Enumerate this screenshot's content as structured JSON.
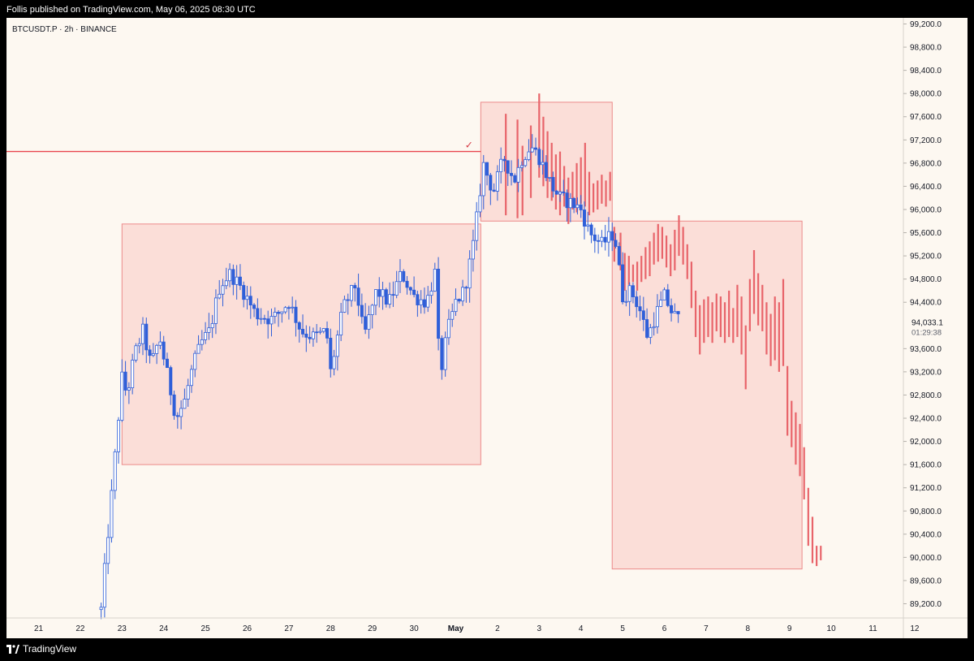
{
  "header": {
    "attribution": "Follis published on TradingView.com, May 06, 2025 08:30 UTC"
  },
  "symbol": {
    "title": "BTCUSDT.P · 2h · BINANCE"
  },
  "footer": {
    "brand": "TradingView"
  },
  "chart_data": {
    "type": "candlestick",
    "y_axis": {
      "ticks": [
        99200,
        98800,
        98400,
        98000,
        97600,
        97200,
        96800,
        96400,
        96000,
        95600,
        95200,
        94800,
        94400,
        93600,
        93200,
        92800,
        92400,
        92000,
        91600,
        91200,
        90800,
        90400,
        90000,
        89600,
        89200
      ],
      "tick_labels": [
        "99,200.0",
        "98,800.0",
        "98,400.0",
        "98,000.0",
        "97,600.0",
        "97,200.0",
        "96,800.0",
        "96,400.0",
        "96,000.0",
        "95,600.0",
        "95,200.0",
        "94,800.0",
        "94,400.0",
        "93,600.0",
        "93,200.0",
        "92,800.0",
        "92,400.0",
        "92,000.0",
        "91,600.0",
        "91,200.0",
        "90,800.0",
        "90,400.0",
        "90,000.0",
        "89,600.0",
        "89,200.0"
      ],
      "range": [
        88900,
        99200
      ]
    },
    "x_axis": {
      "start": "2025-04-21",
      "labels": [
        {
          "label": "21",
          "day": 0,
          "bold": false
        },
        {
          "label": "22",
          "day": 1,
          "bold": false
        },
        {
          "label": "23",
          "day": 2,
          "bold": false
        },
        {
          "label": "24",
          "day": 3,
          "bold": false
        },
        {
          "label": "25",
          "day": 4,
          "bold": false
        },
        {
          "label": "26",
          "day": 5,
          "bold": false
        },
        {
          "label": "27",
          "day": 6,
          "bold": false
        },
        {
          "label": "28",
          "day": 7,
          "bold": false
        },
        {
          "label": "29",
          "day": 8,
          "bold": false
        },
        {
          "label": "30",
          "day": 9,
          "bold": false
        },
        {
          "label": "May",
          "day": 10,
          "bold": true
        },
        {
          "label": "2",
          "day": 11,
          "bold": false
        },
        {
          "label": "3",
          "day": 12,
          "bold": false
        },
        {
          "label": "4",
          "day": 13,
          "bold": false
        },
        {
          "label": "5",
          "day": 14,
          "bold": false
        },
        {
          "label": "6",
          "day": 15,
          "bold": false
        },
        {
          "label": "7",
          "day": 16,
          "bold": false
        },
        {
          "label": "8",
          "day": 17,
          "bold": false
        },
        {
          "label": "9",
          "day": 18,
          "bold": false
        },
        {
          "label": "10",
          "day": 19,
          "bold": false
        },
        {
          "label": "11",
          "day": 20,
          "bold": false
        },
        {
          "label": "12",
          "day": 21,
          "bold": false
        }
      ]
    },
    "current_price": {
      "value": 94033.1,
      "label": "94,033.1",
      "countdown": "01:29:38"
    },
    "horizontal_line": {
      "price": 97000,
      "label": "✓"
    },
    "zones": [
      {
        "name": "range",
        "day_start": 2.0,
        "day_end": 10.6,
        "price_top": 95750,
        "price_bottom": 91600
      },
      {
        "name": "top",
        "day_start": 10.6,
        "day_end": 13.75,
        "price_top": 97850,
        "price_bottom": 95800
      },
      {
        "name": "target",
        "day_start": 13.75,
        "day_end": 18.3,
        "price_top": 95800,
        "price_bottom": 89800
      }
    ],
    "series": [
      {
        "name": "price",
        "color": "#2f5fd9",
        "anchors": [
          {
            "day": 1.5,
            "price": 89100
          },
          {
            "day": 1.65,
            "price": 90300
          },
          {
            "day": 1.78,
            "price": 91300
          },
          {
            "day": 1.9,
            "price": 92300
          },
          {
            "day": 2.0,
            "price": 93100
          },
          {
            "day": 2.12,
            "price": 92800
          },
          {
            "day": 2.3,
            "price": 93500
          },
          {
            "day": 2.5,
            "price": 93900
          },
          {
            "day": 2.7,
            "price": 93300
          },
          {
            "day": 2.9,
            "price": 93800
          },
          {
            "day": 3.1,
            "price": 93100
          },
          {
            "day": 3.3,
            "price": 92400
          },
          {
            "day": 3.5,
            "price": 92700
          },
          {
            "day": 3.7,
            "price": 93300
          },
          {
            "day": 3.9,
            "price": 93700
          },
          {
            "day": 4.1,
            "price": 93900
          },
          {
            "day": 4.35,
            "price": 94700
          },
          {
            "day": 4.6,
            "price": 94900
          },
          {
            "day": 4.9,
            "price": 94600
          },
          {
            "day": 5.2,
            "price": 94200
          },
          {
            "day": 5.6,
            "price": 94100
          },
          {
            "day": 6.0,
            "price": 94400
          },
          {
            "day": 6.3,
            "price": 93900
          },
          {
            "day": 6.6,
            "price": 93800
          },
          {
            "day": 6.9,
            "price": 93900
          },
          {
            "day": 7.0,
            "price": 93200
          },
          {
            "day": 7.3,
            "price": 94300
          },
          {
            "day": 7.6,
            "price": 94700
          },
          {
            "day": 7.8,
            "price": 93800
          },
          {
            "day": 8.1,
            "price": 94600
          },
          {
            "day": 8.4,
            "price": 94400
          },
          {
            "day": 8.7,
            "price": 94900
          },
          {
            "day": 9.0,
            "price": 94500
          },
          {
            "day": 9.3,
            "price": 94400
          },
          {
            "day": 9.5,
            "price": 94900
          },
          {
            "day": 9.62,
            "price": 93100
          },
          {
            "day": 9.8,
            "price": 93900
          },
          {
            "day": 10.0,
            "price": 94400
          },
          {
            "day": 10.2,
            "price": 94600
          },
          {
            "day": 10.4,
            "price": 95300
          },
          {
            "day": 10.55,
            "price": 96100
          },
          {
            "day": 10.65,
            "price": 96800
          },
          {
            "day": 10.9,
            "price": 96300
          },
          {
            "day": 11.15,
            "price": 96900
          },
          {
            "day": 11.4,
            "price": 96500
          },
          {
            "day": 11.6,
            "price": 96900
          },
          {
            "day": 11.8,
            "price": 97100
          },
          {
            "day": 12.0,
            "price": 96900
          },
          {
            "day": 12.3,
            "price": 96400
          },
          {
            "day": 12.5,
            "price": 96200
          },
          {
            "day": 12.8,
            "price": 96100
          },
          {
            "day": 13.0,
            "price": 96000
          },
          {
            "day": 13.2,
            "price": 95600
          },
          {
            "day": 13.5,
            "price": 95400
          },
          {
            "day": 13.8,
            "price": 95600
          },
          {
            "day": 14.0,
            "price": 94500
          },
          {
            "day": 14.2,
            "price": 94600
          },
          {
            "day": 14.4,
            "price": 94300
          },
          {
            "day": 14.6,
            "price": 93800
          },
          {
            "day": 14.8,
            "price": 94200
          },
          {
            "day": 15.0,
            "price": 94500
          },
          {
            "day": 15.2,
            "price": 94200
          },
          {
            "day": 15.35,
            "price": 94100
          }
        ]
      },
      {
        "name": "projection",
        "color": "#e8646a",
        "bars": [
          {
            "day": 11.2,
            "high": 97650,
            "low": 95900
          },
          {
            "day": 11.48,
            "high": 97550,
            "low": 95850
          },
          {
            "day": 11.6,
            "high": 97100,
            "low": 95900
          },
          {
            "day": 11.8,
            "high": 97450,
            "low": 96200
          },
          {
            "day": 12.0,
            "high": 98000,
            "low": 96550
          },
          {
            "day": 12.1,
            "high": 97600,
            "low": 96400
          },
          {
            "day": 12.2,
            "high": 97350,
            "low": 96200
          },
          {
            "day": 12.3,
            "high": 97150,
            "low": 96150
          },
          {
            "day": 12.4,
            "high": 96950,
            "low": 96000
          },
          {
            "day": 12.5,
            "high": 97000,
            "low": 95900
          },
          {
            "day": 12.6,
            "high": 96750,
            "low": 96050
          },
          {
            "day": 12.7,
            "high": 96550,
            "low": 95750
          },
          {
            "day": 12.8,
            "high": 96650,
            "low": 96000
          },
          {
            "day": 12.9,
            "high": 96800,
            "low": 95950
          },
          {
            "day": 13.0,
            "high": 96900,
            "low": 96100
          },
          {
            "day": 13.1,
            "high": 97150,
            "low": 96050
          },
          {
            "day": 13.2,
            "high": 96650,
            "low": 95900
          },
          {
            "day": 13.3,
            "high": 96450,
            "low": 95950
          },
          {
            "day": 13.4,
            "high": 96500,
            "low": 96000
          },
          {
            "day": 13.5,
            "high": 96600,
            "low": 96100
          },
          {
            "day": 13.6,
            "high": 96500,
            "low": 96050
          },
          {
            "day": 13.7,
            "high": 96650,
            "low": 96150
          },
          {
            "day": 13.8,
            "high": 95700,
            "low": 95100
          },
          {
            "day": 13.95,
            "high": 95600,
            "low": 94950
          },
          {
            "day": 14.05,
            "high": 95250,
            "low": 94600
          },
          {
            "day": 14.15,
            "high": 95200,
            "low": 94700
          },
          {
            "day": 14.25,
            "high": 95050,
            "low": 94750
          },
          {
            "day": 14.35,
            "high": 95100,
            "low": 94600
          },
          {
            "day": 14.45,
            "high": 95200,
            "low": 94750
          },
          {
            "day": 14.55,
            "high": 95350,
            "low": 94800
          },
          {
            "day": 14.65,
            "high": 95450,
            "low": 94850
          },
          {
            "day": 14.75,
            "high": 95600,
            "low": 95050
          },
          {
            "day": 14.85,
            "high": 95750,
            "low": 95100
          },
          {
            "day": 14.95,
            "high": 95700,
            "low": 95150
          },
          {
            "day": 15.05,
            "high": 95550,
            "low": 95000
          },
          {
            "day": 15.15,
            "high": 95400,
            "low": 94850
          },
          {
            "day": 15.25,
            "high": 95650,
            "low": 94950
          },
          {
            "day": 15.35,
            "high": 95900,
            "low": 95200
          },
          {
            "day": 15.45,
            "high": 95700,
            "low": 95050
          },
          {
            "day": 15.55,
            "high": 95400,
            "low": 94800
          },
          {
            "day": 15.65,
            "high": 95100,
            "low": 94300
          },
          {
            "day": 15.75,
            "high": 94600,
            "low": 93800
          },
          {
            "day": 15.85,
            "high": 94350,
            "low": 93500
          },
          {
            "day": 15.95,
            "high": 94450,
            "low": 93700
          },
          {
            "day": 16.05,
            "high": 94500,
            "low": 93800
          },
          {
            "day": 16.15,
            "high": 94400,
            "low": 93700
          },
          {
            "day": 16.25,
            "high": 94550,
            "low": 93900
          },
          {
            "day": 16.35,
            "high": 94500,
            "low": 93800
          },
          {
            "day": 16.45,
            "high": 94400,
            "low": 93700
          },
          {
            "day": 16.55,
            "high": 94600,
            "low": 93800
          },
          {
            "day": 16.65,
            "high": 94300,
            "low": 93700
          },
          {
            "day": 16.75,
            "high": 94700,
            "low": 93800
          },
          {
            "day": 16.85,
            "high": 94500,
            "low": 93500
          },
          {
            "day": 16.95,
            "high": 94000,
            "low": 92900
          },
          {
            "day": 17.05,
            "high": 94800,
            "low": 93900
          },
          {
            "day": 17.15,
            "high": 95300,
            "low": 94200
          },
          {
            "day": 17.25,
            "high": 94900,
            "low": 94000
          },
          {
            "day": 17.35,
            "high": 94700,
            "low": 93900
          },
          {
            "day": 17.45,
            "high": 94400,
            "low": 93500
          },
          {
            "day": 17.55,
            "high": 94200,
            "low": 93300
          },
          {
            "day": 17.65,
            "high": 94500,
            "low": 93400
          },
          {
            "day": 17.75,
            "high": 94400,
            "low": 93200
          },
          {
            "day": 17.85,
            "high": 94800,
            "low": 93300
          },
          {
            "day": 17.95,
            "high": 93300,
            "low": 92100
          },
          {
            "day": 18.05,
            "high": 92700,
            "low": 91900
          },
          {
            "day": 18.15,
            "high": 92500,
            "low": 91600
          },
          {
            "day": 18.25,
            "high": 92300,
            "low": 91400
          },
          {
            "day": 18.35,
            "high": 91900,
            "low": 91000
          },
          {
            "day": 18.45,
            "high": 91200,
            "low": 90200
          },
          {
            "day": 18.55,
            "high": 90700,
            "low": 89900
          },
          {
            "day": 18.65,
            "high": 90200,
            "low": 89850
          },
          {
            "day": 18.75,
            "high": 90200,
            "low": 89950
          }
        ]
      }
    ]
  }
}
